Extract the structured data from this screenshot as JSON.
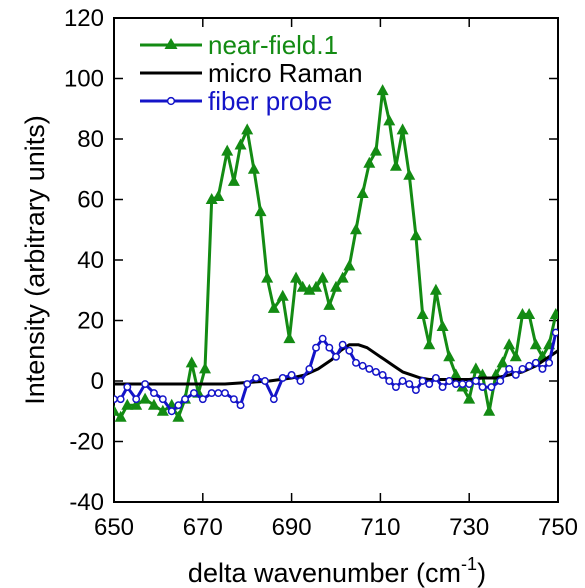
{
  "chart_data": {
    "type": "line",
    "title": "",
    "xlabel": "delta wavenumber (cm",
    "xlabel_sup": "-1",
    "xlabel_end": ")",
    "ylabel": "Intensity (arbitrary units)",
    "xlim": [
      650,
      750
    ],
    "ylim": [
      -40,
      120
    ],
    "xticks": [
      650,
      670,
      690,
      710,
      730,
      750
    ],
    "yticks": [
      -40,
      -20,
      0,
      20,
      40,
      60,
      80,
      100,
      120
    ],
    "grid": false,
    "legend_position": "top-left",
    "series": [
      {
        "name": "near-field.1",
        "color": "#138b13",
        "marker": "triangle",
        "x": [
          650,
          651.5,
          653,
          655,
          657,
          659,
          661,
          663,
          664.5,
          666,
          667.5,
          669,
          670.5,
          672,
          673.5,
          675.5,
          677,
          678.5,
          680,
          681.5,
          683,
          684.5,
          686,
          688,
          689.5,
          691,
          692.5,
          694,
          695.5,
          697,
          698.5,
          700,
          701.5,
          703,
          704.5,
          706,
          707.5,
          709,
          710.5,
          712,
          713.5,
          715,
          716.5,
          718,
          719.5,
          721,
          722.5,
          724,
          725.5,
          727,
          728.5,
          730,
          731.5,
          733,
          734.5,
          736,
          737.5,
          739,
          740.5,
          742,
          743.5,
          745,
          746.5,
          748,
          749.5
        ],
        "y": [
          -10,
          -12,
          -8,
          -8,
          -6,
          -8,
          -10,
          -8,
          -12,
          -6,
          6,
          -4,
          4,
          60,
          61,
          76,
          66,
          78,
          83,
          70,
          56,
          34,
          24,
          28,
          14,
          34,
          31,
          30,
          31,
          34,
          25,
          31,
          34,
          38,
          50,
          62,
          72,
          76,
          96,
          86,
          71,
          83,
          68,
          48,
          22,
          12,
          30,
          18,
          8,
          2,
          -2,
          -6,
          4,
          2,
          -10,
          2,
          6,
          12,
          8,
          22,
          22,
          12,
          8,
          12,
          22
        ]
      },
      {
        "name": "micro Raman",
        "color": "#000000",
        "marker": "none",
        "x": [
          650,
          655,
          660,
          665,
          670,
          675,
          680,
          685,
          690,
          693,
          696,
          699,
          701,
          703,
          705,
          707,
          709,
          711,
          713,
          715,
          717,
          719,
          721,
          724,
          727,
          730,
          733,
          736,
          739,
          742,
          745,
          748,
          750
        ],
        "y": [
          -1,
          -1,
          -1,
          -1,
          -1,
          -1,
          -0.5,
          0,
          1,
          2,
          4,
          7,
          10,
          12,
          12,
          11,
          9,
          7,
          5,
          3,
          2,
          1,
          0.5,
          0.5,
          0.5,
          0.5,
          1,
          1,
          2,
          3,
          5,
          8,
          10
        ]
      },
      {
        "name": "fiber probe",
        "color": "#1414c8",
        "marker": "circle",
        "x": [
          650,
          651.5,
          653,
          655,
          657,
          659,
          661,
          663,
          664.5,
          666,
          668,
          670,
          672,
          673.5,
          675,
          677,
          678.5,
          680,
          682,
          684,
          686,
          688,
          690,
          692,
          694,
          695.5,
          697,
          698.5,
          700,
          701.5,
          703,
          704.5,
          706,
          707.5,
          709,
          710.5,
          712,
          713.5,
          715,
          716.5,
          718,
          719.5,
          721,
          722.5,
          724,
          725.5,
          727,
          728.5,
          730,
          731.5,
          733,
          735,
          737,
          739,
          740.5,
          742,
          743.5,
          745,
          746.5,
          748,
          749.5
        ],
        "y": [
          -6,
          -6,
          -2,
          -6,
          -1,
          -4,
          -6,
          -10,
          -8,
          -6,
          -4,
          -6,
          -4,
          -4,
          -4,
          -6,
          -8,
          -1,
          1,
          0,
          -6,
          1,
          2,
          0,
          4,
          11,
          14,
          11,
          8,
          12,
          10,
          6,
          5,
          4,
          3,
          2,
          0,
          -2,
          0,
          -1,
          -3,
          0,
          -1,
          1,
          -2,
          0,
          -1,
          -1,
          -1,
          0,
          -2,
          -2,
          0,
          4,
          2,
          4,
          5,
          6,
          4,
          6,
          16
        ]
      }
    ]
  }
}
